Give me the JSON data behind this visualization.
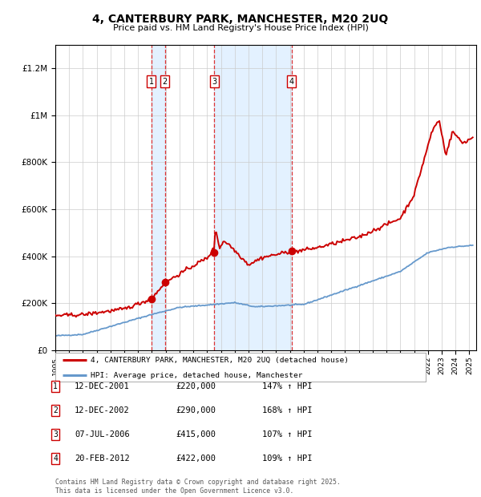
{
  "title": "4, CANTERBURY PARK, MANCHESTER, M20 2UQ",
  "subtitle": "Price paid vs. HM Land Registry's House Price Index (HPI)",
  "background_color": "#ffffff",
  "plot_bg_color": "#ffffff",
  "grid_color": "#cccccc",
  "legend_label_red": "4, CANTERBURY PARK, MANCHESTER, M20 2UQ (detached house)",
  "legend_label_blue": "HPI: Average price, detached house, Manchester",
  "footer": "Contains HM Land Registry data © Crown copyright and database right 2025.\nThis data is licensed under the Open Government Licence v3.0.",
  "transactions": [
    {
      "num": 1,
      "date_label": "12-DEC-2001",
      "date_year": 2001.95,
      "price": 220000,
      "pct": "147% ↑ HPI"
    },
    {
      "num": 2,
      "date_label": "12-DEC-2002",
      "date_year": 2002.95,
      "price": 290000,
      "pct": "168% ↑ HPI"
    },
    {
      "num": 3,
      "date_label": "07-JUL-2006",
      "date_year": 2006.52,
      "price": 415000,
      "pct": "107% ↑ HPI"
    },
    {
      "num": 4,
      "date_label": "20-FEB-2012",
      "date_year": 2012.13,
      "price": 422000,
      "pct": "109% ↑ HPI"
    }
  ],
  "ylim": [
    0,
    1300000
  ],
  "xlim_start": 1995.0,
  "xlim_end": 2025.5,
  "red_color": "#cc0000",
  "blue_color": "#6699cc",
  "marker_color": "#cc0000",
  "vline_color": "#dd3333",
  "shade_color": "#ddeeff",
  "box_color": "#cc0000"
}
